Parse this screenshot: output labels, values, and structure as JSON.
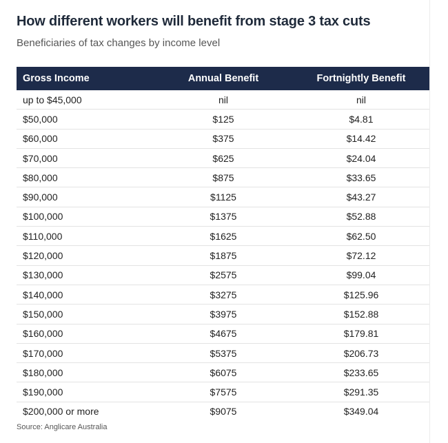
{
  "header": {
    "title": "How different workers will benefit from stage 3 tax cuts",
    "subtitle": "Beneficiaries of tax changes by income level"
  },
  "footer": {
    "source": "Source: Anglicare Australia"
  },
  "colors": {
    "header_background": "#1d2b4a",
    "header_text": "#ffffff",
    "row_divider": "#e3e3e3"
  },
  "chart_data": {
    "type": "table",
    "title": "How different workers will benefit from stage 3 tax cuts",
    "subtitle": "Beneficiaries of tax changes by income level",
    "columns": [
      "Gross Income",
      "Annual Benefit",
      "Fortnightly Benefit"
    ],
    "rows": [
      [
        "up to $45,000",
        "nil",
        "nil"
      ],
      [
        "$50,000",
        "$125",
        "$4.81"
      ],
      [
        "$60,000",
        "$375",
        "$14.42"
      ],
      [
        "$70,000",
        "$625",
        "$24.04"
      ],
      [
        "$80,000",
        "$875",
        "$33.65"
      ],
      [
        "$90,000",
        "$1125",
        "$43.27"
      ],
      [
        "$100,000",
        "$1375",
        "$52.88"
      ],
      [
        "$110,000",
        "$1625",
        "$62.50"
      ],
      [
        "$120,000",
        "$1875",
        "$72.12"
      ],
      [
        "$130,000",
        "$2575",
        "$99.04"
      ],
      [
        "$140,000",
        "$3275",
        "$125.96"
      ],
      [
        "$150,000",
        "$3975",
        "$152.88"
      ],
      [
        "$160,000",
        "$4675",
        "$179.81"
      ],
      [
        "$170,000",
        "$5375",
        "$206.73"
      ],
      [
        "$180,000",
        "$6075",
        "$233.65"
      ],
      [
        "$190,000",
        "$7575",
        "$291.35"
      ],
      [
        "$200,000 or more",
        "$9075",
        "$349.04"
      ]
    ],
    "source": "Source: Anglicare Australia"
  }
}
